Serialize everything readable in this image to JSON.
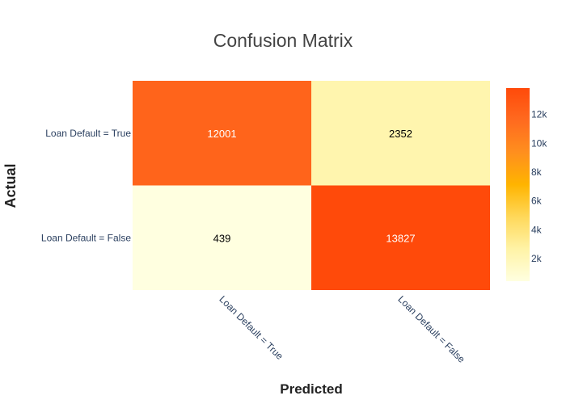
{
  "chart_data": {
    "type": "heatmap",
    "title": "Confusion Matrix",
    "xlabel": "Predicted",
    "ylabel": "Actual",
    "x_categories": [
      "Loan Default = True",
      "Loan Default = False"
    ],
    "y_categories": [
      "Loan Default = True",
      "Loan Default = False"
    ],
    "z": [
      [
        12001,
        2352
      ],
      [
        439,
        13827
      ]
    ],
    "colorscale": [
      "#ffffe0",
      "#fff3a6",
      "#ffd85a",
      "#ffb400",
      "#ff8f1e",
      "#ff6a1f",
      "#ff4a0a"
    ],
    "zmin": 439,
    "zmax": 13827,
    "colorbar_ticks": [
      2000,
      4000,
      6000,
      8000,
      10000,
      12000
    ],
    "colorbar_ticklabels": [
      "2k",
      "4k",
      "6k",
      "8k",
      "10k",
      "12k"
    ],
    "text_colors": {
      "dark_cell": "#ffffff",
      "light_cell": "#000000"
    },
    "grid": false,
    "colorbar_position": "right"
  }
}
